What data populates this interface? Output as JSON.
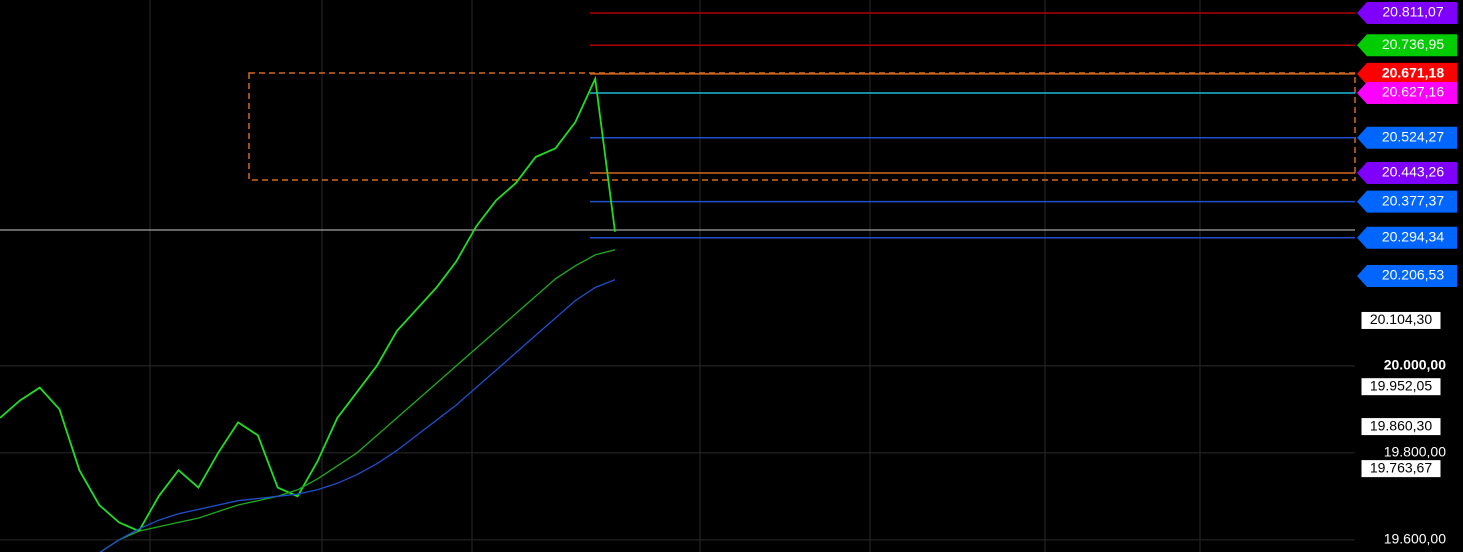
{
  "chart_data": {
    "type": "line",
    "categories": [
      null,
      null,
      null,
      null,
      null,
      null,
      null,
      null,
      null,
      null,
      null,
      null,
      null,
      null,
      null,
      null,
      null,
      null,
      null,
      null,
      null,
      null,
      null,
      null,
      null,
      null,
      null,
      null,
      null,
      null,
      null,
      null
    ],
    "series": [
      {
        "color": "#22dd22",
        "values": [
          19880,
          19920,
          19950,
          19900,
          19760,
          19680,
          19640,
          19620,
          19700,
          19760,
          19720,
          19800,
          19870,
          19840,
          19720,
          19700,
          19780,
          19880,
          19940,
          20000,
          20080,
          20130,
          20180,
          20240,
          20320,
          20380,
          20420,
          20480,
          20500,
          20560,
          20660,
          20308
        ]
      },
      {
        "color": "#1faa1f",
        "values": [
          null,
          null,
          null,
          null,
          null,
          19570,
          19600,
          19620,
          19630,
          19640,
          19650,
          19665,
          19680,
          19690,
          19700,
          19715,
          19740,
          19770,
          19800,
          19840,
          19880,
          19920,
          19960,
          20000,
          20040,
          20080,
          20120,
          20160,
          20200,
          20230,
          20255,
          20267
        ]
      },
      {
        "color": "#1f4fcc",
        "values": [
          null,
          null,
          null,
          null,
          null,
          19570,
          19600,
          19625,
          19645,
          19660,
          19670,
          19680,
          19690,
          19695,
          19700,
          19705,
          19715,
          19730,
          19750,
          19775,
          19805,
          19840,
          19875,
          19910,
          19950,
          19990,
          20030,
          20070,
          20110,
          20150,
          20180,
          20198
        ]
      }
    ],
    "levels": [
      {
        "value": 20811.07,
        "label": "20.811,07",
        "color": "#8000ff",
        "line_color": "#b00000"
      },
      {
        "value": 20736.95,
        "label": "20.736,95",
        "color": "#00cc00",
        "line_color": "#b00000"
      },
      {
        "value": 20671.18,
        "label": "20.671,18",
        "color": "#ff0000",
        "line_color": "#d2691e"
      },
      {
        "value": 20627.16,
        "label": "20.627,16",
        "color": "#ff00ff",
        "line_color": "#1fb8d8"
      },
      {
        "value": 20524.27,
        "label": "20.524,27",
        "color": "#0066ff",
        "line_color": "#1f4fcc"
      },
      {
        "value": 20443.26,
        "label": "20.443,26",
        "color": "#8000ff",
        "line_color": "#d2691e"
      },
      {
        "value": 20377.37,
        "label": "20.377,37",
        "color": "#0066ff",
        "line_color": "#1f4fcc"
      },
      {
        "value": 20294.34,
        "label": "20.294,34",
        "color": "#0066ff",
        "line_color": "#1f4fcc"
      },
      {
        "value": 20206.53,
        "label": "20.206,53",
        "color": "#0066ff",
        "line_color": null
      },
      {
        "value": 20104.3,
        "label": "20.104,30",
        "color": "#ffffff",
        "line_color": null
      },
      {
        "value": 19952.05,
        "label": "19.952,05",
        "color": "#ffffff",
        "line_color": null
      },
      {
        "value": 19860.3,
        "label": "19.860,30",
        "color": "#ffffff",
        "line_color": null
      },
      {
        "value": 19763.67,
        "label": "19.763,67",
        "color": "#ffffff",
        "line_color": null
      }
    ],
    "ylim": [
      19572,
      20841
    ],
    "yticks": [
      {
        "value": 20000,
        "label": "20.000,00"
      },
      {
        "value": 19800,
        "label": "19.800,00"
      },
      {
        "value": 19600,
        "label": "19.600,00"
      }
    ],
    "grid": true
  }
}
